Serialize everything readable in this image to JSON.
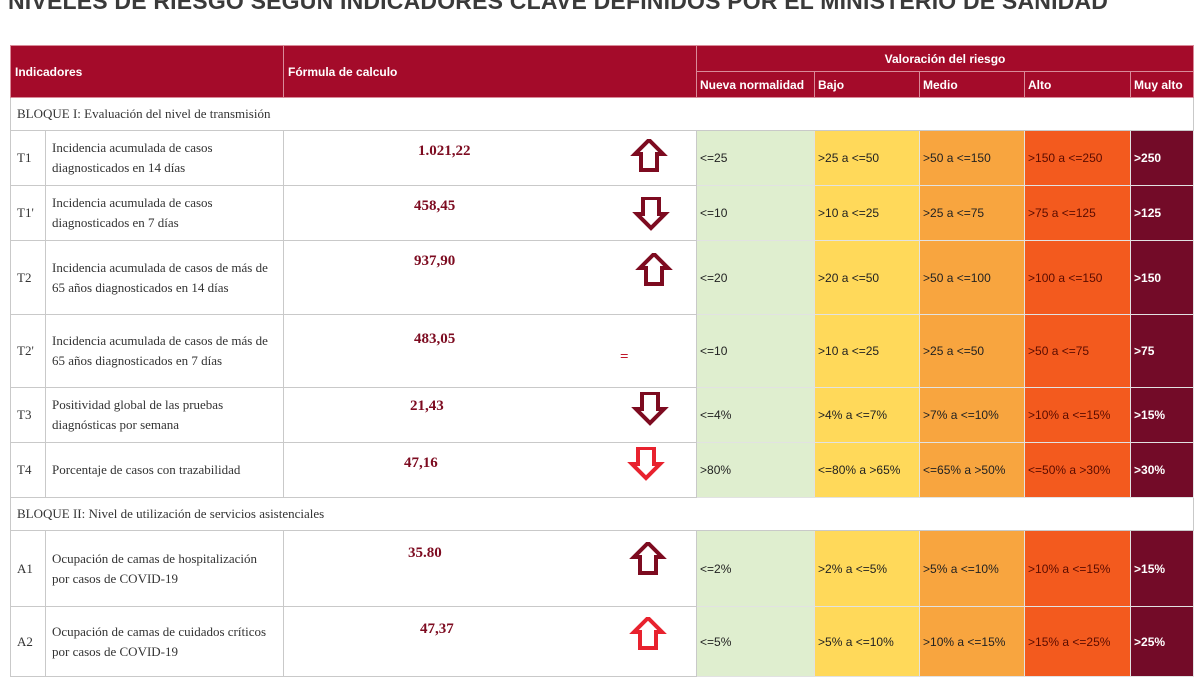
{
  "title": "NIVELES DE RIESGO SEGÚN INDICADORES CLAVE DEFINIDOS POR EL MINISTERIO DE SANIDAD",
  "colors": {
    "header_bg": "#a40b2a",
    "nueva_normalidad": "#dfeecf",
    "bajo": "#ffd95a",
    "medio": "#f8a53f",
    "alto": "#f35a1e",
    "muy_alto": "#730b28",
    "arrow_dark": "#7d0b20",
    "arrow_bright": "#e8222e"
  },
  "header": {
    "indicadores": "Indicadores",
    "formula": "Fórmula de calculo",
    "valoracion": "Valoración del riesgo",
    "levels": [
      "Nueva normalidad",
      "Bajo",
      "Medio",
      "Alto",
      "Muy alto"
    ]
  },
  "blocks": [
    {
      "title": "BLOQUE I: Evaluación del nivel de transmisión",
      "rows": [
        {
          "code": "T1",
          "name": "Incidencia acumulada de casos diagnosticados en 14 días",
          "value": "1.021,22",
          "trend": "up-dark",
          "ranges": [
            "<=25",
            ">25 a <=50",
            ">50 a <=150",
            ">150 a <=250",
            ">250"
          ]
        },
        {
          "code": "T1'",
          "name": "Incidencia acumulada de casos diagnosticados en 7 días",
          "value": "458,45",
          "trend": "down-dark",
          "ranges": [
            "<=10",
            ">10 a <=25",
            ">25 a <=75",
            ">75 a <=125",
            ">125"
          ]
        },
        {
          "code": "T2",
          "name": "Incidencia acumulada de casos de más de 65 años diagnosticados en 14 días",
          "value": "937,90",
          "trend": "up-dark",
          "ranges": [
            "<=20",
            ">20 a <=50",
            ">50 a <=100",
            ">100 a <=150",
            ">150"
          ]
        },
        {
          "code": "T2'",
          "name": "Incidencia acumulada de casos de más de 65 años diagnosticados en 7 días",
          "value": "483,05",
          "trend": "equal",
          "ranges": [
            "<=10",
            ">10 a <=25",
            ">25 a <=50",
            ">50 a <=75",
            ">75"
          ]
        },
        {
          "code": "T3",
          "name": "Positividad global de las pruebas diagnósticas por semana",
          "value": "21,43",
          "trend": "down-dark",
          "ranges": [
            "<=4%",
            ">4% a <=7%",
            ">7% a <=10%",
            ">10% a <=15%",
            ">15%"
          ]
        },
        {
          "code": "T4",
          "name": "Porcentaje de casos con trazabilidad",
          "value": "47,16",
          "trend": "down-bright",
          "ranges": [
            ">80%",
            "<=80% a >65%",
            "<=65% a >50%",
            "<=50% a >30%",
            ">30%"
          ]
        }
      ]
    },
    {
      "title": "BLOQUE II: Nivel de utilización de servicios asistenciales",
      "rows": [
        {
          "code": "A1",
          "name": "Ocupación de camas de hospitalización por casos de COVID-19",
          "value": "35.80",
          "trend": "up-dark",
          "ranges": [
            "<=2%",
            ">2% a <=5%",
            ">5% a <=10%",
            ">10% a <=15%",
            ">15%"
          ]
        },
        {
          "code": "A2",
          "name": "Ocupación de camas de cuidados críticos por casos de COVID-19",
          "value": "47,37",
          "trend": "up-bright",
          "ranges": [
            "<=5%",
            ">5% a <=10%",
            ">10% a <=15%",
            ">15% a <=25%",
            ">25%"
          ]
        }
      ]
    }
  ]
}
